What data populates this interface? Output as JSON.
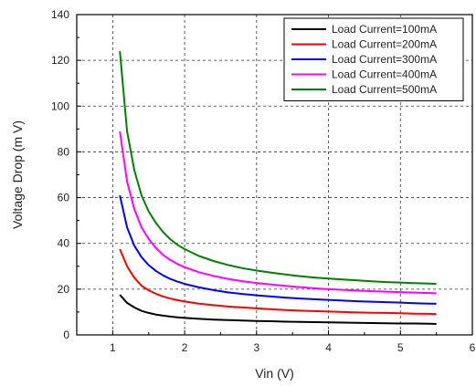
{
  "chart_data": {
    "type": "line",
    "xlabel": "Vin (V)",
    "ylabel": "Voltage Drop (m V)",
    "xlim": [
      0.5,
      6
    ],
    "ylim": [
      0,
      140
    ],
    "x_ticks": [
      1,
      2,
      3,
      4,
      5,
      6
    ],
    "y_ticks": [
      0,
      20,
      40,
      60,
      80,
      100,
      120,
      140
    ],
    "grid": "dashed",
    "legend_position": "top-right",
    "x": [
      1.1,
      1.2,
      1.3,
      1.4,
      1.5,
      1.6,
      1.7,
      1.8,
      1.9,
      2.0,
      2.2,
      2.4,
      2.6,
      2.8,
      3.0,
      3.2,
      3.4,
      3.6,
      3.8,
      4.0,
      4.2,
      4.4,
      4.6,
      4.8,
      5.0,
      5.2,
      5.4,
      5.5
    ],
    "series": [
      {
        "name": "Load Current=100mA",
        "color": "#000000",
        "values": [
          17.5,
          14.0,
          12.0,
          10.5,
          9.6,
          8.9,
          8.4,
          8.0,
          7.7,
          7.4,
          7.0,
          6.7,
          6.5,
          6.3,
          6.1,
          6.0,
          5.8,
          5.7,
          5.6,
          5.5,
          5.4,
          5.3,
          5.2,
          5.1,
          5.0,
          5.0,
          4.9,
          4.8
        ]
      },
      {
        "name": "Load Current=200mA",
        "color": "#ff0000",
        "values": [
          37.5,
          30.0,
          25.0,
          21.5,
          19.5,
          18.0,
          16.8,
          15.9,
          15.2,
          14.6,
          13.7,
          13.0,
          12.4,
          12.0,
          11.6,
          11.2,
          10.9,
          10.6,
          10.4,
          10.2,
          10.0,
          9.8,
          9.7,
          9.6,
          9.5,
          9.3,
          9.2,
          9.1
        ]
      },
      {
        "name": "Load Current=300mA",
        "color": "#0000ff",
        "values": [
          61.0,
          47.0,
          39.0,
          34.0,
          30.5,
          28.0,
          26.0,
          24.5,
          23.3,
          22.3,
          20.8,
          19.6,
          18.6,
          17.9,
          17.3,
          16.8,
          16.3,
          15.9,
          15.6,
          15.3,
          15.0,
          14.7,
          14.5,
          14.3,
          14.1,
          13.9,
          13.7,
          13.6
        ]
      },
      {
        "name": "Load Current=400mA",
        "color": "#ff00ff",
        "values": [
          89.0,
          67.0,
          55.0,
          47.0,
          42.0,
          38.0,
          35.0,
          32.8,
          31.0,
          29.6,
          27.4,
          25.8,
          24.5,
          23.5,
          22.7,
          22.0,
          21.4,
          20.9,
          20.4,
          20.0,
          19.7,
          19.4,
          19.1,
          18.9,
          18.7,
          18.5,
          18.3,
          18.2
        ]
      },
      {
        "name": "Load Current=500mA",
        "color": "#008000",
        "values": [
          124.0,
          89.0,
          72.0,
          61.0,
          54.0,
          49.0,
          45.0,
          41.8,
          39.4,
          37.5,
          34.5,
          32.3,
          30.6,
          29.2,
          28.1,
          27.2,
          26.4,
          25.7,
          25.1,
          24.6,
          24.2,
          23.8,
          23.4,
          23.1,
          22.9,
          22.6,
          22.4,
          22.3
        ]
      }
    ]
  }
}
